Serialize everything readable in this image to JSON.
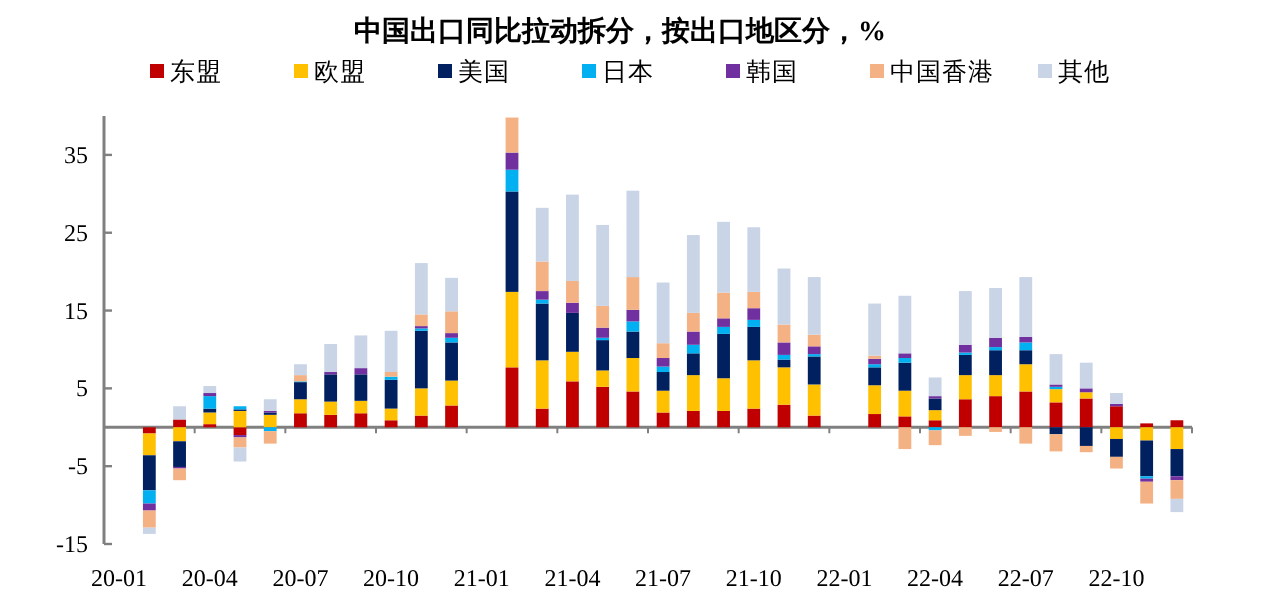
{
  "chart_data": {
    "type": "bar",
    "stacked": true,
    "legend": "top",
    "title": "中国出口同比拉动拆分，按出口地区分，%",
    "categories": [
      "20-01",
      null,
      null,
      "20-04",
      null,
      null,
      "20-07",
      null,
      null,
      "20-10",
      null,
      null,
      "21-01",
      null,
      null,
      "21-04",
      null,
      null,
      "21-07",
      null,
      null,
      "21-10",
      null,
      null,
      "22-01",
      null,
      null,
      "22-04",
      null,
      null,
      "22-07",
      null,
      null,
      "22-10",
      null,
      null
    ],
    "ylim": [
      -15,
      40
    ],
    "yticks": [
      -15,
      -5,
      5,
      15,
      25,
      35
    ],
    "series": [
      {
        "name": "东盟",
        "color": "#c00000",
        "values": [
          null,
          -0.8,
          1.0,
          0.4,
          -1.0,
          0,
          1.8,
          1.6,
          1.8,
          0.9,
          1.5,
          2.8,
          null,
          7.7,
          2.4,
          5.9,
          5.2,
          4.6,
          1.9,
          2.1,
          2.1,
          2.4,
          2.9,
          1.5,
          null,
          1.7,
          1.4,
          0.9,
          3.6,
          4.0,
          4.6,
          3.2,
          3.7,
          2.7,
          0.5,
          0.9
        ]
      },
      {
        "name": "欧盟",
        "color": "#ffc000",
        "values": [
          null,
          -2.8,
          -1.8,
          1.5,
          2.1,
          1.6,
          1.8,
          1.7,
          1.6,
          1.5,
          3.5,
          3.2,
          null,
          9.7,
          6.2,
          3.8,
          2.1,
          4.3,
          2.8,
          4.6,
          4.2,
          6.2,
          4.8,
          4.0,
          null,
          3.7,
          3.3,
          1.3,
          3.1,
          2.7,
          3.5,
          1.7,
          0.8,
          -1.5,
          -1.7,
          -2.8
        ]
      },
      {
        "name": "美国",
        "color": "#002060",
        "values": [
          null,
          -4.5,
          -3.3,
          0.5,
          0.2,
          0.3,
          2.2,
          3.5,
          3.4,
          3.7,
          7.4,
          4.9,
          null,
          12.9,
          7.3,
          5.0,
          3.9,
          3.4,
          2.4,
          2.8,
          5.7,
          4.3,
          1.0,
          3.6,
          null,
          2.3,
          3.6,
          1.5,
          2.6,
          3.2,
          1.8,
          -0.9,
          -2.4,
          -2.3,
          -4.6,
          -3.5
        ]
      },
      {
        "name": "日本",
        "color": "#00b0f0",
        "values": [
          null,
          -1.7,
          0,
          1.6,
          0.4,
          -0.5,
          0.1,
          0,
          0,
          0.4,
          0.3,
          0.6,
          null,
          2.8,
          0.5,
          0,
          0.3,
          1.3,
          0.7,
          1.1,
          0.9,
          0.9,
          0.6,
          0.3,
          null,
          0.4,
          0.6,
          -0.4,
          0.3,
          0.4,
          1.0,
          0.3,
          0,
          0,
          -0.3,
          0
        ]
      },
      {
        "name": "韩国",
        "color": "#7030a0",
        "values": [
          null,
          -0.9,
          -0.2,
          0.4,
          -0.3,
          0.2,
          0,
          0.3,
          0.8,
          0,
          0.3,
          0.6,
          null,
          2.2,
          1.1,
          1.3,
          1.3,
          1.5,
          1.1,
          1.7,
          1.1,
          1.5,
          1.6,
          1.0,
          null,
          0.7,
          0.6,
          0.3,
          1.0,
          1.2,
          0.7,
          0.3,
          0.5,
          0.3,
          -0.4,
          -0.5
        ]
      },
      {
        "name": "中国香港",
        "color": "#f4b183",
        "values": [
          null,
          -2.2,
          -1.5,
          0,
          -1.3,
          -1.6,
          0.8,
          0,
          0,
          0.6,
          1.5,
          2.8,
          null,
          4.5,
          3.8,
          2.8,
          2.8,
          4.2,
          1.9,
          2.4,
          3.3,
          2.1,
          2.3,
          1.5,
          null,
          0.4,
          -2.8,
          -1.9,
          -1.1,
          -0.6,
          -2.1,
          -2.2,
          -0.8,
          -1.5,
          -2.8,
          -2.4
        ]
      },
      {
        "name": "其他",
        "color": "#c9d4e6",
        "values": [
          null,
          -0.8,
          1.7,
          0.9,
          -1.8,
          1.5,
          1.4,
          3.6,
          4.2,
          5.3,
          6.6,
          4.3,
          null,
          0,
          6.9,
          11.1,
          10.4,
          11.1,
          7.8,
          10.0,
          9.1,
          8.3,
          7.2,
          7.4,
          null,
          6.7,
          7.4,
          2.4,
          6.9,
          6.4,
          7.7,
          3.9,
          3.3,
          1.4,
          0,
          -1.7
        ]
      }
    ]
  }
}
